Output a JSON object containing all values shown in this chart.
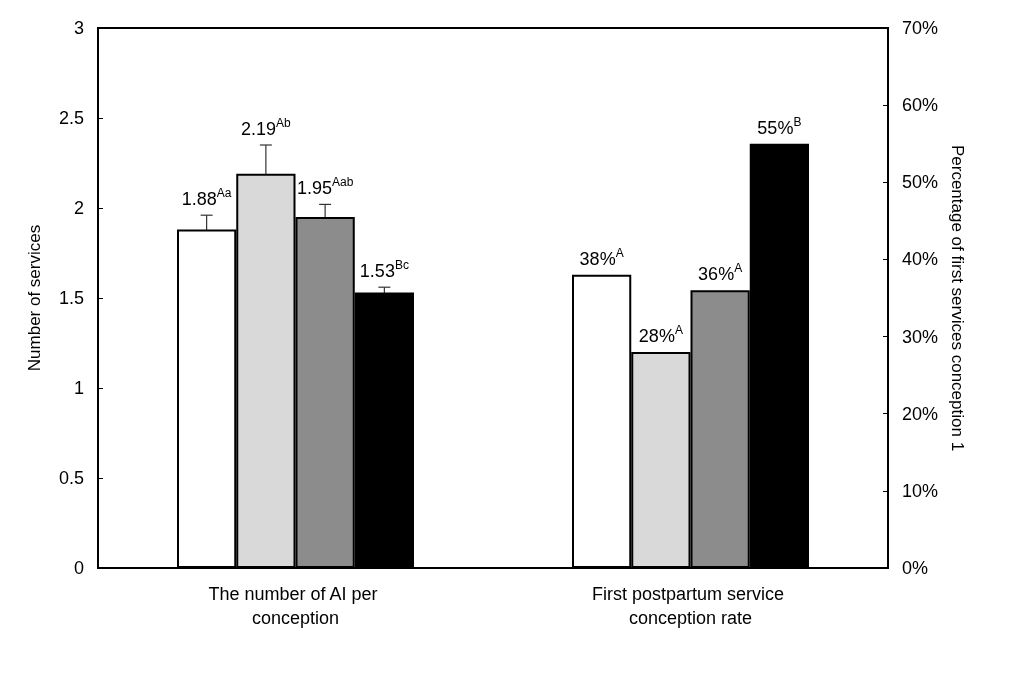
{
  "chart_data": {
    "type": "bar",
    "ylabel": "Number of services",
    "y2label": "Percentage of first services conception 1",
    "categories": [
      "The number of AI per conception",
      "First postpartum service conception rate"
    ],
    "series": [
      {
        "color": "#ffffff",
        "values": [
          1.88,
          null
        ],
        "errors": [
          0.08,
          null
        ],
        "value_labels": [
          "1.88$^{Aa}$",
          null
        ]
      },
      {
        "color": "#d9d9d9",
        "values": [
          2.19,
          null
        ],
        "errors": [
          0.16,
          null
        ],
        "value_labels": [
          "2.19$^{Ab}$",
          null
        ]
      },
      {
        "color": "#8c8c8c",
        "values": [
          1.95,
          null
        ],
        "errors": [
          0.07,
          null
        ],
        "value_labels": [
          "1.95$^{Aab}$",
          null
        ]
      },
      {
        "color": "#000000",
        "values": [
          1.53,
          null
        ],
        "errors": [
          0.03,
          null
        ],
        "value_labels": [
          "1.53$^{Bc}$",
          null
        ]
      },
      {
        "color": "#ffffff",
        "axis": "y2",
        "values": [
          null,
          38
        ],
        "value_labels": [
          null,
          "38%$^{A}$"
        ]
      },
      {
        "color": "#d9d9d9",
        "axis": "y2",
        "values": [
          null,
          28
        ],
        "value_labels": [
          null,
          "28%$^{A}$"
        ]
      },
      {
        "color": "#8c8c8c",
        "axis": "y2",
        "values": [
          null,
          36
        ],
        "value_labels": [
          null,
          "36%$^{A}$"
        ]
      },
      {
        "color": "#000000",
        "axis": "y2",
        "values": [
          null,
          55
        ],
        "value_labels": [
          null,
          "55%$^{B}$"
        ]
      }
    ],
    "ylim": [
      0,
      3
    ],
    "yticks": [
      0,
      0.5,
      1,
      1.5,
      2,
      2.5,
      3
    ],
    "y2lim": [
      0,
      70
    ],
    "y2ticks": [
      {
        "value": 0,
        "label": "0%"
      },
      {
        "value": 10,
        "label": "10%"
      },
      {
        "value": 20,
        "label": "20%"
      },
      {
        "value": 30,
        "label": "30%"
      },
      {
        "value": 40,
        "label": "40%"
      },
      {
        "value": 50,
        "label": "50%"
      },
      {
        "value": 60,
        "label": "60%"
      },
      {
        "value": 70,
        "label": "70%"
      }
    ],
    "grid": false
  }
}
